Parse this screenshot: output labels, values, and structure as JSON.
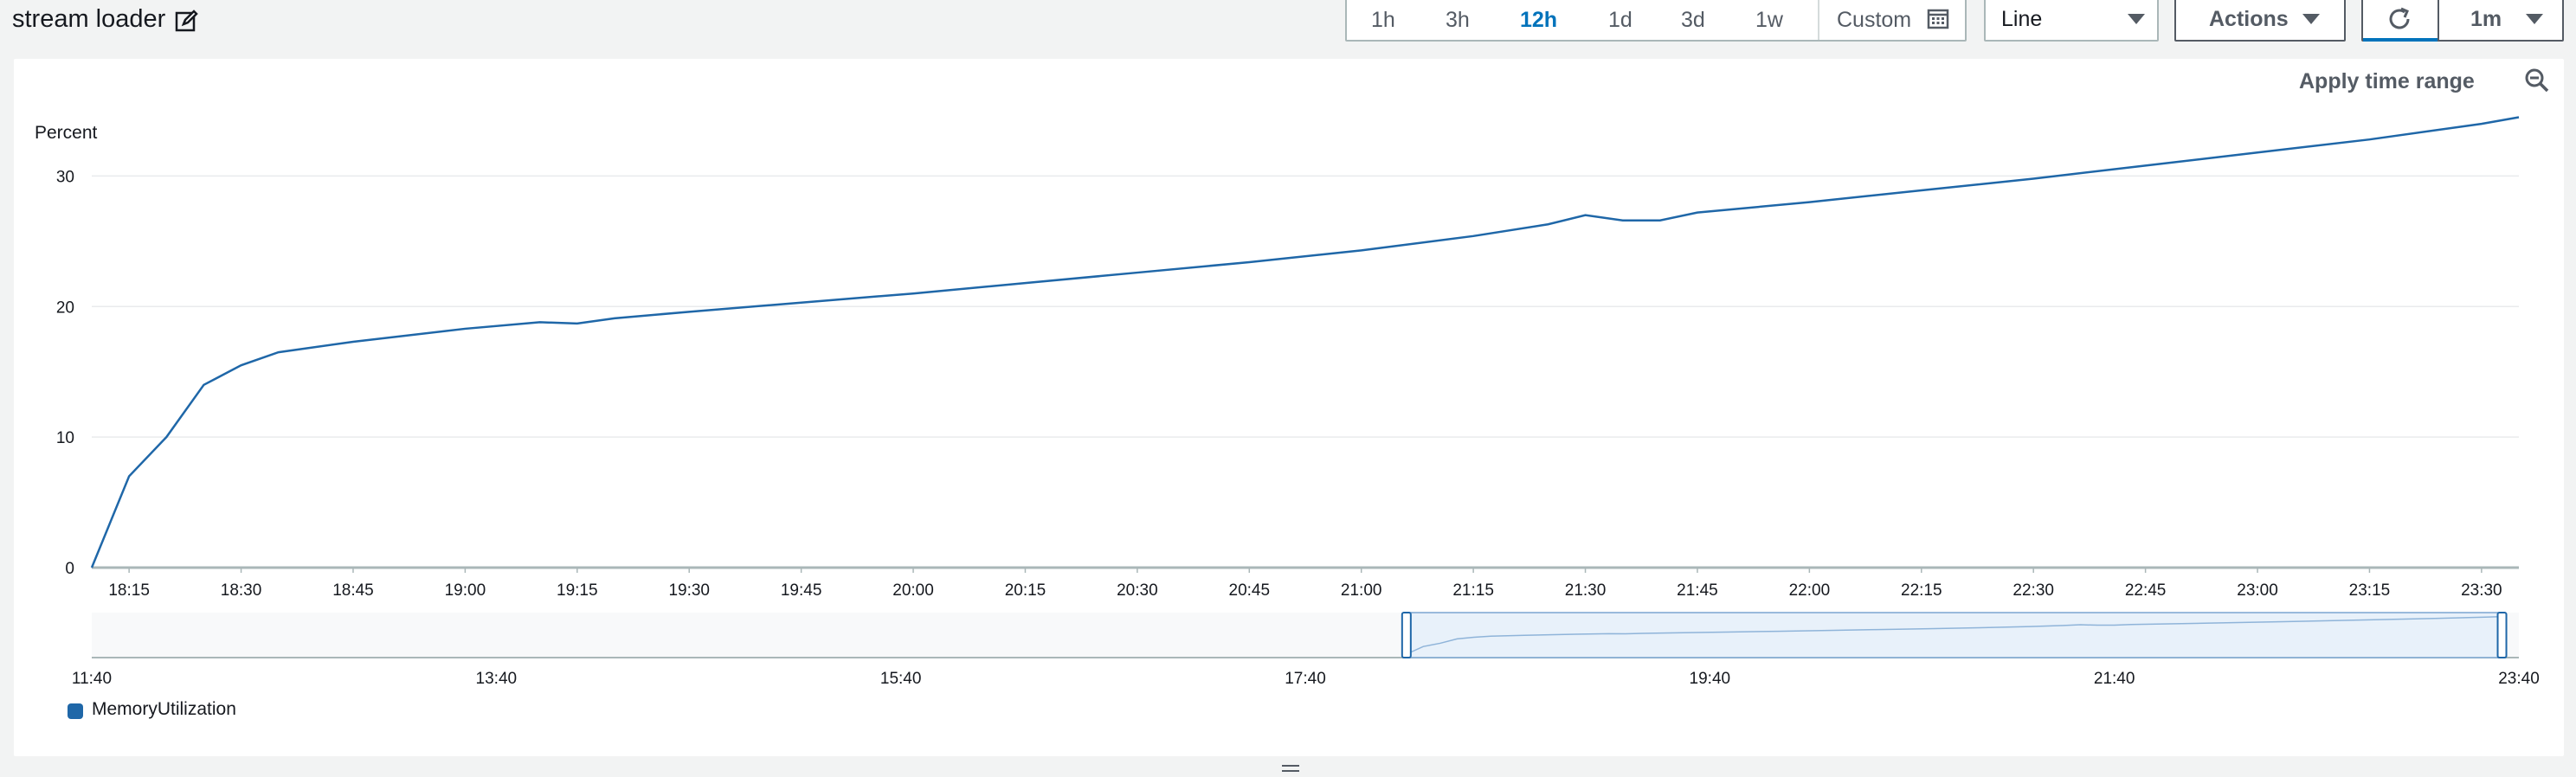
{
  "header": {
    "title": "stream loader",
    "ranges": [
      "1h",
      "3h",
      "12h",
      "1d",
      "3d",
      "1w"
    ],
    "active_range": "12h",
    "custom_label": "Custom",
    "view_type": "Line",
    "actions_label": "Actions",
    "refresh_interval": "1m"
  },
  "panel": {
    "apply_label": "Apply time range"
  },
  "colors": {
    "series": "#1f67a8",
    "accent": "#0073bb"
  },
  "chart_data": {
    "type": "line",
    "ylabel": "Percent",
    "ylim": [
      0,
      35
    ],
    "yticks": [
      "0",
      "10",
      "20",
      "30"
    ],
    "xticks": [
      "18:15",
      "18:30",
      "18:45",
      "19:00",
      "19:15",
      "19:30",
      "19:45",
      "20:00",
      "20:15",
      "20:30",
      "20:45",
      "21:00",
      "21:15",
      "21:30",
      "21:45",
      "22:00",
      "22:15",
      "22:30",
      "22:45",
      "23:00",
      "23:15",
      "23:30"
    ],
    "x_range": [
      "18:10",
      "23:35"
    ],
    "series": [
      {
        "name": "MemoryUtilization",
        "x": [
          "18:10",
          "18:15",
          "18:20",
          "18:25",
          "18:30",
          "18:35",
          "18:45",
          "19:00",
          "19:10",
          "19:15",
          "19:20",
          "19:30",
          "19:45",
          "20:00",
          "20:15",
          "20:30",
          "20:45",
          "21:00",
          "21:15",
          "21:25",
          "21:30",
          "21:35",
          "21:40",
          "21:45",
          "22:00",
          "22:15",
          "22:30",
          "22:45",
          "23:00",
          "23:15",
          "23:30",
          "23:35"
        ],
        "values": [
          0,
          7,
          10,
          14,
          15.5,
          16.5,
          17.3,
          18.3,
          18.8,
          18.7,
          19.1,
          19.6,
          20.3,
          21,
          21.8,
          22.6,
          23.4,
          24.3,
          25.4,
          26.3,
          27,
          26.6,
          26.6,
          27.2,
          28,
          28.9,
          29.8,
          30.8,
          31.8,
          32.8,
          34,
          34.5
        ]
      }
    ],
    "navigator": {
      "xticks": [
        "11:40",
        "13:40",
        "15:40",
        "17:40",
        "19:40",
        "21:40",
        "23:40"
      ],
      "selected_range": [
        "18:10",
        "23:35"
      ]
    },
    "grid": true,
    "legend": "bottom-left"
  }
}
